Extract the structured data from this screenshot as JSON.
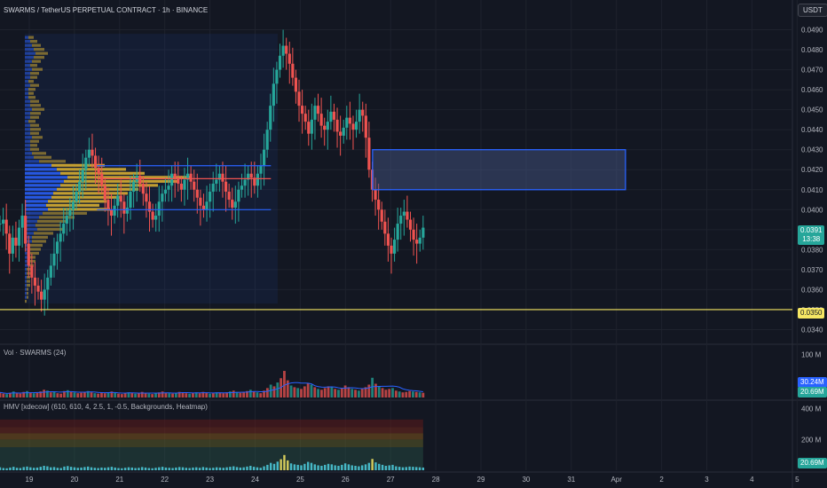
{
  "header": {
    "symbol_line": "SWARMS / TetherUS PERPETUAL CONTRACT · 1h · BINANCE",
    "currency_button": "USDT"
  },
  "colors": {
    "background": "#131722",
    "up": "#26a69a",
    "down": "#ef5350",
    "vp_yellow": "#e0b531",
    "vp_blue": "#2962ff",
    "box_border": "#2962ff",
    "support_line": "#f5e663",
    "vol_ma": "#2962ff",
    "heatmap_cyan": "#4dd0e1"
  },
  "chart_data": [
    {
      "type": "candlestick",
      "pane": "price",
      "x_ticks": [
        "19",
        "20",
        "21",
        "22",
        "23",
        "24",
        "25",
        "26",
        "27",
        "28",
        "29",
        "30",
        "31",
        "Apr",
        "2",
        "3",
        "4",
        "5"
      ],
      "y_ticks": [
        "0.0490",
        "0.0480",
        "0.0470",
        "0.0460",
        "0.0450",
        "0.0440",
        "0.0430",
        "0.0420",
        "0.0410",
        "0.0400",
        "0.0390",
        "0.0380",
        "0.0370",
        "0.0360",
        "0.0350",
        "0.0340"
      ],
      "ylim": [
        0.0334,
        0.0496
      ],
      "series_close_path": [
        [
          0.0393,
          0.0395,
          0.0388,
          0.0378,
          0.0386,
          0.0382,
          0.0391,
          0.0397,
          0.0383,
          0.0372,
          0.0366,
          0.0362,
          0.0359,
          0.0355,
          0.036,
          0.0366,
          0.0372,
          0.0378,
          0.0384,
          0.0388,
          0.0393,
          0.0397,
          0.04,
          0.0404,
          0.0409,
          0.0414,
          0.042,
          0.0426,
          0.043,
          0.0427,
          0.0421,
          0.0418,
          0.0412,
          0.0405,
          0.04,
          0.0397,
          0.0402,
          0.0407,
          0.0404,
          0.0398,
          0.0401,
          0.0409,
          0.0414,
          0.0417,
          0.0413,
          0.0408,
          0.0404,
          0.0399,
          0.0395,
          0.0397,
          0.0404,
          0.0408,
          0.041,
          0.0412,
          0.0418,
          0.0416,
          0.0413,
          0.041,
          0.0415,
          0.0418,
          0.0414,
          0.041,
          0.0406,
          0.0402,
          0.04,
          0.0404,
          0.0409,
          0.0413,
          0.0415,
          0.0418,
          0.0414,
          0.0409,
          0.0405,
          0.0401,
          0.0404,
          0.041,
          0.0412,
          0.0415,
          0.0418,
          0.0416,
          0.0412,
          0.0418,
          0.0422,
          0.043,
          0.044,
          0.0452,
          0.0463,
          0.047,
          0.0477,
          0.0482,
          0.0478,
          0.0473,
          0.0466,
          0.0459,
          0.0452,
          0.0448,
          0.0444,
          0.0438,
          0.0445,
          0.0452,
          0.0448,
          0.0442,
          0.044,
          0.0444,
          0.0449,
          0.0445,
          0.0439,
          0.0437,
          0.0441,
          0.0446,
          0.0443,
          0.044,
          0.0444,
          0.045,
          0.0447,
          0.0436,
          0.042,
          0.041,
          0.0405,
          0.04,
          0.0394,
          0.0388,
          0.0382,
          0.0378,
          0.0385,
          0.0393,
          0.0397,
          0.0399,
          0.0395,
          0.039,
          0.0385,
          0.0383,
          0.0386,
          0.0391
        ]
      ],
      "last_price": "0.0391",
      "countdown": "13:38",
      "support_level": 0.035,
      "support_label": "0.0350",
      "value_area": {
        "high": 0.0422,
        "poc": 0.04155,
        "low": 0.04,
        "start_day": 19,
        "end_day": 24.5
      },
      "zone_box": {
        "top": 0.043,
        "bottom": 0.041,
        "start_day": 26.6,
        "end_day": 32.2
      }
    },
    {
      "type": "bar",
      "pane": "volume",
      "title": "Vol · SWARMS (24)",
      "y_ticks": [
        "100 M"
      ],
      "ylim": [
        0,
        120
      ],
      "values": [
        12,
        9,
        8,
        11,
        14,
        10,
        9,
        13,
        15,
        12,
        10,
        11,
        14,
        18,
        16,
        12,
        13,
        10,
        9,
        15,
        17,
        14,
        12,
        10,
        11,
        13,
        15,
        12,
        10,
        9,
        11,
        10,
        12,
        14,
        11,
        9,
        8,
        10,
        12,
        11,
        9,
        10,
        13,
        11,
        9,
        8,
        10,
        12,
        14,
        11,
        10,
        9,
        11,
        13,
        12,
        10,
        9,
        11,
        12,
        10,
        13,
        11,
        9,
        10,
        12,
        11,
        10,
        12,
        14,
        16,
        13,
        11,
        12,
        15,
        18,
        14,
        12,
        10,
        16,
        22,
        30,
        26,
        35,
        45,
        62,
        40,
        28,
        24,
        22,
        20,
        26,
        34,
        30,
        24,
        20,
        18,
        22,
        26,
        24,
        20,
        18,
        22,
        28,
        24,
        20,
        18,
        16,
        20,
        24,
        30,
        46,
        32,
        26,
        22,
        18,
        20,
        22,
        16,
        14,
        12,
        13,
        15,
        14,
        13,
        12,
        11
      ],
      "ma_label": "30.24M",
      "last_volume": "20.69M"
    },
    {
      "type": "bar",
      "pane": "hmv",
      "title": "HMV [xdecow] (610, 610, 4, 2.5, 1, -0.5, Backgrounds, Heatmap)",
      "y_ticks": [
        "400 M",
        "200 M"
      ],
      "ylim": [
        0,
        450
      ],
      "last_value": "20.69M"
    }
  ],
  "volume_profile": {
    "rows_top_to_bottom": [
      {
        "price": 0.0488,
        "y": 0,
        "b": 0
      },
      {
        "price": 0.0486,
        "y": 6,
        "b": 4
      },
      {
        "price": 0.0484,
        "y": 8,
        "b": 6
      },
      {
        "price": 0.0482,
        "y": 10,
        "b": 8
      },
      {
        "price": 0.048,
        "y": 12,
        "b": 10
      },
      {
        "price": 0.0478,
        "y": 14,
        "b": 12
      },
      {
        "price": 0.0476,
        "y": 12,
        "b": 10
      },
      {
        "price": 0.0474,
        "y": 10,
        "b": 8
      },
      {
        "price": 0.0472,
        "y": 8,
        "b": 6
      },
      {
        "price": 0.047,
        "y": 12,
        "b": 8
      },
      {
        "price": 0.0468,
        "y": 10,
        "b": 6
      },
      {
        "price": 0.0466,
        "y": 8,
        "b": 6
      },
      {
        "price": 0.0464,
        "y": 6,
        "b": 4
      },
      {
        "price": 0.0462,
        "y": 10,
        "b": 6
      },
      {
        "price": 0.046,
        "y": 8,
        "b": 4
      },
      {
        "price": 0.0458,
        "y": 6,
        "b": 4
      },
      {
        "price": 0.0456,
        "y": 8,
        "b": 4
      },
      {
        "price": 0.0454,
        "y": 10,
        "b": 6
      },
      {
        "price": 0.0452,
        "y": 12,
        "b": 6
      },
      {
        "price": 0.045,
        "y": 14,
        "b": 8
      },
      {
        "price": 0.0448,
        "y": 12,
        "b": 6
      },
      {
        "price": 0.0446,
        "y": 10,
        "b": 6
      },
      {
        "price": 0.0444,
        "y": 8,
        "b": 4
      },
      {
        "price": 0.0442,
        "y": 10,
        "b": 6
      },
      {
        "price": 0.044,
        "y": 12,
        "b": 6
      },
      {
        "price": 0.0438,
        "y": 10,
        "b": 6
      },
      {
        "price": 0.0436,
        "y": 12,
        "b": 8
      },
      {
        "price": 0.0434,
        "y": 10,
        "b": 6
      },
      {
        "price": 0.0432,
        "y": 8,
        "b": 6
      },
      {
        "price": 0.043,
        "y": 10,
        "b": 6
      },
      {
        "price": 0.0428,
        "y": 16,
        "b": 8
      },
      {
        "price": 0.0426,
        "y": 20,
        "b": 10
      },
      {
        "price": 0.0424,
        "y": 30,
        "b": 16
      },
      {
        "price": 0.0422,
        "y": 60,
        "b": 30
      },
      {
        "price": 0.042,
        "y": 78,
        "b": 36
      },
      {
        "price": 0.0418,
        "y": 95,
        "b": 40
      },
      {
        "price": 0.0416,
        "y": 140,
        "b": 48
      },
      {
        "price": 0.0414,
        "y": 128,
        "b": 44
      },
      {
        "price": 0.0412,
        "y": 110,
        "b": 40
      },
      {
        "price": 0.041,
        "y": 92,
        "b": 36
      },
      {
        "price": 0.0408,
        "y": 84,
        "b": 32
      },
      {
        "price": 0.0406,
        "y": 78,
        "b": 30
      },
      {
        "price": 0.0404,
        "y": 66,
        "b": 26
      },
      {
        "price": 0.0402,
        "y": 60,
        "b": 24
      },
      {
        "price": 0.04,
        "y": 70,
        "b": 26
      },
      {
        "price": 0.0398,
        "y": 50,
        "b": 20
      },
      {
        "price": 0.0396,
        "y": 40,
        "b": 16
      },
      {
        "price": 0.0394,
        "y": 34,
        "b": 14
      },
      {
        "price": 0.0392,
        "y": 28,
        "b": 12
      },
      {
        "price": 0.039,
        "y": 30,
        "b": 14
      },
      {
        "price": 0.0388,
        "y": 22,
        "b": 10
      },
      {
        "price": 0.0386,
        "y": 18,
        "b": 8
      },
      {
        "price": 0.0384,
        "y": 16,
        "b": 8
      },
      {
        "price": 0.0382,
        "y": 14,
        "b": 6
      },
      {
        "price": 0.038,
        "y": 12,
        "b": 6
      },
      {
        "price": 0.0378,
        "y": 10,
        "b": 6
      },
      {
        "price": 0.0376,
        "y": 8,
        "b": 4
      },
      {
        "price": 0.0374,
        "y": 8,
        "b": 4
      },
      {
        "price": 0.0372,
        "y": 6,
        "b": 4
      },
      {
        "price": 0.037,
        "y": 6,
        "b": 2
      },
      {
        "price": 0.0368,
        "y": 6,
        "b": 2
      },
      {
        "price": 0.0366,
        "y": 4,
        "b": 2
      },
      {
        "price": 0.0364,
        "y": 4,
        "b": 2
      },
      {
        "price": 0.0362,
        "y": 4,
        "b": 2
      },
      {
        "price": 0.036,
        "y": 2,
        "b": 2
      },
      {
        "price": 0.0358,
        "y": 2,
        "b": 2
      },
      {
        "price": 0.0356,
        "y": 2,
        "b": 2
      },
      {
        "price": 0.0354,
        "y": 2,
        "b": 0
      }
    ]
  }
}
